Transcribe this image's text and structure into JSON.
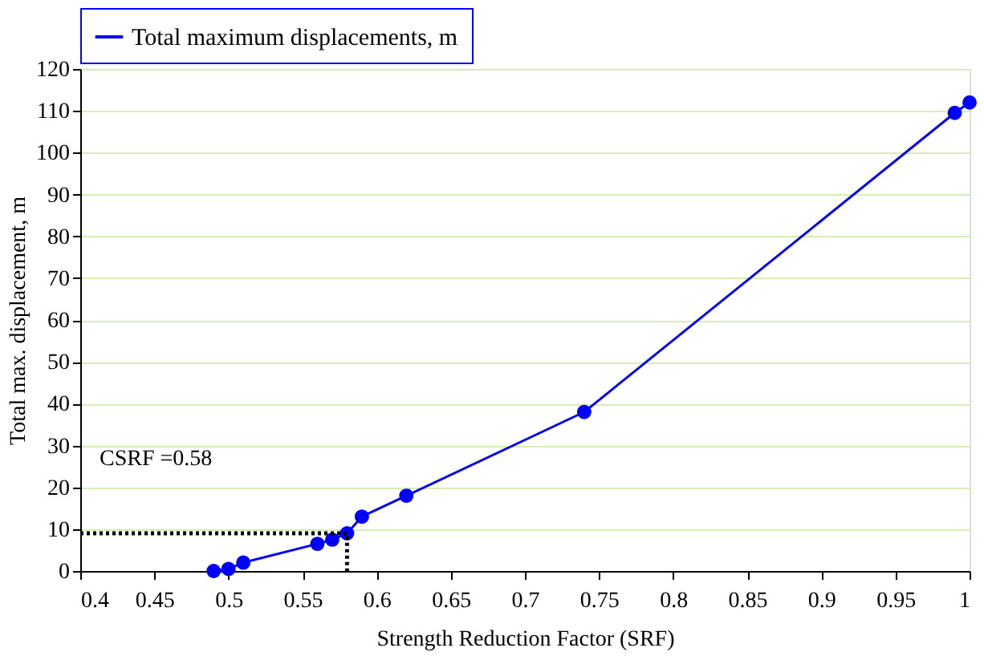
{
  "chart_data": {
    "type": "line",
    "xlabel": "Strength Reduction Factor (SRF)",
    "ylabel": "Total max. displacement, m",
    "xlim": [
      0.4,
      1.0
    ],
    "xticks": [
      0.4,
      0.45,
      0.5,
      0.55,
      0.6,
      0.65,
      0.7,
      0.75,
      0.8,
      0.85,
      0.9,
      0.95,
      1
    ],
    "ylim": [
      0,
      120
    ],
    "yticks": [
      0,
      10,
      20,
      30,
      40,
      50,
      60,
      70,
      80,
      90,
      100,
      110,
      120
    ],
    "grid": "y",
    "legend": "top",
    "marker": "circle",
    "line_style": "solid",
    "series": [
      {
        "name": "Total maximum displacements, m",
        "color": "#0000ff",
        "x": [
          0.49,
          0.5,
          0.51,
          0.56,
          0.57,
          0.58,
          0.59,
          0.62,
          0.74,
          0.99,
          1.0
        ],
        "values": [
          0,
          0.5,
          2,
          6.5,
          7.5,
          9,
          13,
          18,
          38,
          109.5,
          112
        ]
      },
      {
        "type": "line",
        "color": "#000000",
        "marker": "none",
        "line_style": "dotted",
        "x": [
          0.4,
          0.58,
          0.58
        ],
        "values": [
          9,
          9,
          0
        ]
      }
    ],
    "annotations": [
      "CSRF =0.58"
    ]
  }
}
